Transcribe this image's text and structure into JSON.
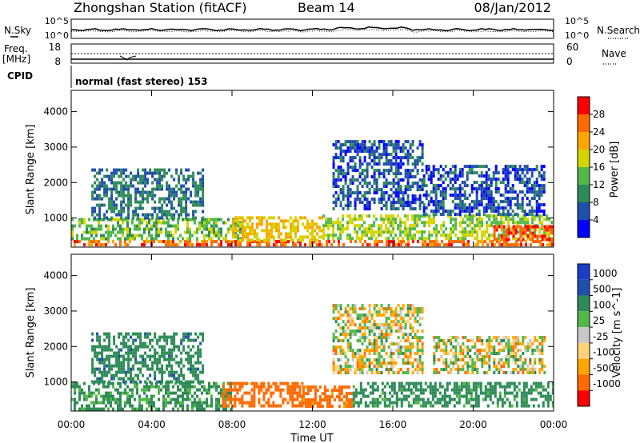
{
  "header": {
    "title": "Zhongshan Station (fitACF)",
    "beam": "Beam 14",
    "date": "08/Jan/2012"
  },
  "strips": {
    "nsky_label": "N.Sky",
    "nsearch_label": "N.Search",
    "noise_ticks_left": [
      "10^5",
      "10^0"
    ],
    "noise_ticks_right": [
      "10^5",
      "10^0"
    ],
    "freq_label": "Freq.",
    "freq_unit": "[MHz]",
    "freq_ticks": [
      "18",
      "8"
    ],
    "nave_label": "Nave",
    "nave_ticks": [
      "60",
      "0"
    ],
    "cpid_label": "CPID",
    "cpid_text": "normal (fast stereo) 153"
  },
  "colors": {
    "power_scale": [
      "#0000ff",
      "#1f4fa8",
      "#2e8b57",
      "#52b848",
      "#d4d400",
      "#ffa500",
      "#ff6a00",
      "#ff0000"
    ],
    "velocity_scale": [
      "#ff0000",
      "#ff6a00",
      "#ffa500",
      "#ffd27a",
      "#c8c8c8",
      "#52b848",
      "#2e8b57",
      "#1f4fa8",
      "#1a3ec8"
    ]
  },
  "chart_data": [
    {
      "type": "heatmap",
      "name": "power",
      "xlabel": "Time UT",
      "ylabel": "Slant Range [km]",
      "xlim": [
        "00:00",
        "24:00"
      ],
      "x_ticks": [
        "00:00",
        "04:00",
        "08:00",
        "12:00",
        "16:00",
        "20:00",
        "00:00"
      ],
      "ylim": [
        180,
        4600
      ],
      "y_ticks": [
        1000,
        2000,
        3000,
        4000
      ],
      "colorbar": {
        "label": "Power [dB]",
        "ticks": [
          "4",
          "8",
          "12",
          "16",
          "20",
          "24",
          "28"
        ],
        "range": [
          0,
          30
        ]
      },
      "regions": [
        {
          "t": [
            0.0,
            24.0
          ],
          "r": [
            200,
            380
          ],
          "value": 26
        },
        {
          "t": [
            0.0,
            8.5
          ],
          "r": [
            380,
            1000
          ],
          "value": 14
        },
        {
          "t": [
            1.0,
            6.5
          ],
          "r": [
            1000,
            2400
          ],
          "value": 8
        },
        {
          "t": [
            8.0,
            12.5
          ],
          "r": [
            380,
            1050
          ],
          "value": 20
        },
        {
          "t": [
            12.5,
            24.0
          ],
          "r": [
            400,
            1100
          ],
          "value": 16
        },
        {
          "t": [
            13.0,
            17.5
          ],
          "r": [
            1300,
            3200
          ],
          "value": 6
        },
        {
          "t": [
            17.5,
            23.5
          ],
          "r": [
            1100,
            2500
          ],
          "value": 6
        },
        {
          "t": [
            21.0,
            24.0
          ],
          "r": [
            380,
            800
          ],
          "value": 27
        }
      ]
    },
    {
      "type": "heatmap",
      "name": "velocity",
      "xlabel": "Time UT",
      "ylabel": "Slant Range [km]",
      "xlim": [
        "00:00",
        "24:00"
      ],
      "x_ticks": [
        "00:00",
        "04:00",
        "08:00",
        "12:00",
        "16:00",
        "20:00",
        "00:00"
      ],
      "ylim": [
        180,
        4600
      ],
      "y_ticks": [
        1000,
        2000,
        3000,
        4000
      ],
      "colorbar": {
        "label": "Velocity [m s^-1]",
        "ticks": [
          "1000",
          "500",
          "100",
          "25",
          "-25",
          "-100",
          "-500",
          "-1000"
        ]
      },
      "regions": [
        {
          "t": [
            0.0,
            8.0
          ],
          "r": [
            200,
            1000
          ],
          "value": 150
        },
        {
          "t": [
            1.0,
            6.5
          ],
          "r": [
            1000,
            2400
          ],
          "value": 400
        },
        {
          "t": [
            7.5,
            11.5
          ],
          "r": [
            300,
            1000
          ],
          "value": -300
        },
        {
          "t": [
            11.5,
            14.0
          ],
          "r": [
            300,
            900
          ],
          "value": -200
        },
        {
          "t": [
            13.0,
            17.5
          ],
          "r": [
            1300,
            3200
          ],
          "value": 0
        },
        {
          "t": [
            14.0,
            24.0
          ],
          "r": [
            300,
            1000
          ],
          "value": 200
        },
        {
          "t": [
            18.0,
            23.5
          ],
          "r": [
            1300,
            2300
          ],
          "value": 0
        }
      ]
    }
  ]
}
